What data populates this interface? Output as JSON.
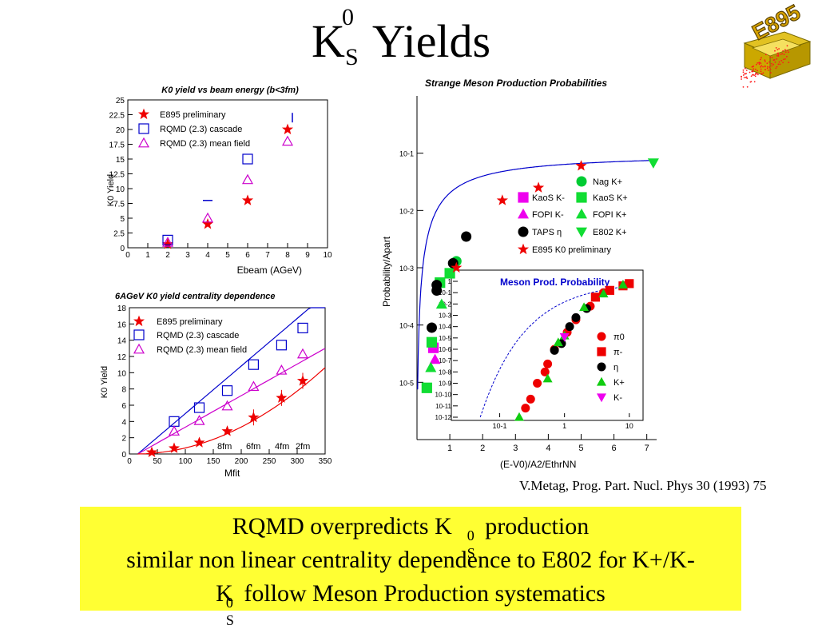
{
  "title": {
    "main": "K",
    "superscript": "0",
    "subscript": "S",
    "rest": "Yields"
  },
  "logo": {
    "text": "E895",
    "accent": "#cc9900"
  },
  "citation": "V.Metag, Prog. Part. Nucl. Phys 30 (1993) 75",
  "banner": {
    "color": "#ffff33",
    "line1_pre": "RQMD overpredicts K",
    "line1_post": " production",
    "line2": "similar non linear centrality dependence  to E802 for K+/K-",
    "line3_post": " follow Meson Production systematics",
    "k_sup": "0",
    "k_sub": "S"
  },
  "chart_data": [
    {
      "type": "scatter",
      "title": "K0 yield vs beam energy (b<3fm)",
      "xlabel": "Ebeam (AGeV)",
      "ylabel": "K0 Yield",
      "xlim": [
        0,
        10
      ],
      "ylim": [
        0,
        25
      ],
      "x_ticks": [
        "0",
        "1",
        "2",
        "3",
        "4",
        "5",
        "6",
        "7",
        "8",
        "9",
        "10"
      ],
      "y_ticks": [
        "0",
        "2.5",
        "5",
        "7.5",
        "10",
        "12.5",
        "15",
        "17.5",
        "20",
        "22.5",
        "25"
      ],
      "legend": [
        "E895 preliminary",
        "RQMD (2.3) cascade",
        "RQMD (2.3) mean field"
      ],
      "series": [
        {
          "name": "E895 preliminary",
          "marker": "star",
          "color": "#ee0000",
          "x": [
            2,
            4,
            6,
            8
          ],
          "y": [
            0.6,
            4.0,
            8.0,
            20.0
          ]
        },
        {
          "name": "RQMD (2.3) cascade",
          "marker": "square",
          "color": "#0000cc",
          "x": [
            2,
            4,
            6,
            8
          ],
          "y": [
            1.3,
            8.0,
            15.0,
            22.0
          ]
        },
        {
          "name": "RQMD (2.3) mean field",
          "marker": "triangle",
          "color": "#cc00cc",
          "x": [
            2,
            4,
            6,
            8
          ],
          "y": [
            0.9,
            5.0,
            11.5,
            18.0
          ]
        }
      ]
    },
    {
      "type": "scatter",
      "title": "6AGeV K0 yield centrality dependence",
      "xlabel": "Mfit",
      "ylabel": "K0 Yield",
      "xlim": [
        0,
        350
      ],
      "ylim": [
        0,
        18
      ],
      "x_ticks": [
        "0",
        "50",
        "100",
        "150",
        "200",
        "250",
        "300",
        "350"
      ],
      "y_ticks": [
        "0",
        "2",
        "4",
        "6",
        "8",
        "10",
        "12",
        "14",
        "16",
        "18"
      ],
      "legend": [
        "E895 preliminary",
        "RQMD (2.3) cascade",
        "RQMD (2.3) mean field"
      ],
      "annotations": [
        "8fm",
        "6fm",
        "4fm",
        "2fm"
      ],
      "series": [
        {
          "name": "E895 preliminary",
          "marker": "star",
          "color": "#ee0000",
          "x": [
            40,
            80,
            125,
            175,
            222,
            272,
            310
          ],
          "y": [
            0.2,
            0.7,
            1.4,
            2.8,
            4.5,
            6.9,
            9.0
          ]
        },
        {
          "name": "RQMD (2.3) cascade",
          "marker": "square",
          "color": "#0000cc",
          "x": [
            80,
            125,
            175,
            222,
            272,
            310
          ],
          "y": [
            4.0,
            5.7,
            7.8,
            11.0,
            13.4,
            15.5
          ]
        },
        {
          "name": "RQMD (2.3) mean field",
          "marker": "triangle",
          "color": "#cc00cc",
          "x": [
            80,
            125,
            175,
            222,
            272,
            310
          ],
          "y": [
            2.8,
            4.1,
            5.9,
            8.3,
            10.3,
            12.3
          ]
        }
      ]
    },
    {
      "type": "scatter",
      "title": "Strange Meson Production Probabilities",
      "xlabel": "",
      "ylabel": "Probability/Apart",
      "xlim": [
        0,
        7.3
      ],
      "ylim_log10": [
        -6,
        0
      ],
      "x_ticks": [
        "1",
        "2",
        "3",
        "4",
        "5",
        "6",
        "7"
      ],
      "y_ticks": [
        "10-5",
        "10-4",
        "10-3",
        "10-2",
        "10-1"
      ],
      "legend": [
        "Nag K+",
        "KaoS K-",
        "KaoS K+",
        "FOPI K-",
        "FOPI K+",
        "TAPS η",
        "E802 K+",
        "E895 K0 preliminary"
      ],
      "series": [
        {
          "name": "Nag K+",
          "marker": "circle",
          "color": "#00cc33",
          "x": [
            1.2
          ],
          "y": [
            0.0013
          ]
        },
        {
          "name": "KaoS K-",
          "marker": "square",
          "color": "#ee00ee",
          "x": [
            0.5
          ],
          "y": [
            4e-05
          ]
        },
        {
          "name": "KaoS K+",
          "marker": "square",
          "color": "#11dd33",
          "x": [
            0.3,
            0.45,
            0.7,
            1.0
          ],
          "y": [
            8e-06,
            5e-05,
            0.00055,
            0.0008
          ]
        },
        {
          "name": "FOPI K-",
          "marker": "triangle",
          "color": "#ee00ee",
          "x": [
            0.55
          ],
          "y": [
            2.5e-05
          ]
        },
        {
          "name": "FOPI K+",
          "marker": "triangle",
          "color": "#11dd33",
          "x": [
            0.42,
            0.75
          ],
          "y": [
            1.8e-05,
            0.00023
          ]
        },
        {
          "name": "TAPS η",
          "marker": "circle",
          "color": "#000000",
          "x": [
            0.45,
            0.6,
            0.6,
            1.1,
            1.5
          ],
          "y": [
            9e-05,
            0.0004,
            0.0005,
            0.0012,
            0.0035
          ]
        },
        {
          "name": "E802 K+",
          "marker": "triangle-down",
          "color": "#11dd33",
          "x": [
            7.2
          ],
          "y": [
            0.068
          ]
        },
        {
          "name": "E895 K0 preliminary",
          "marker": "star",
          "color": "#ee0000",
          "x": [
            1.2,
            2.6,
            3.7,
            5.0
          ],
          "y": [
            0.001,
            0.015,
            0.025,
            0.06
          ]
        }
      ]
    },
    {
      "type": "scatter",
      "title": "Meson Prod. Probability",
      "xlabel": "(E-V0)/A2/EthrNN",
      "x_ticks": [
        "10-1",
        "1",
        "10"
      ],
      "y_ticks": [
        "10-12",
        "10-11",
        "10-10",
        "10-9",
        "10-8",
        "10-7",
        "10-6",
        "10-5",
        "10-4",
        "10-3",
        "10-2",
        "10-1",
        "1"
      ],
      "legend": [
        "π0",
        "π-",
        "η",
        "K+",
        "K-"
      ],
      "series": [
        {
          "name": "π0",
          "marker": "circle",
          "color": "#ee0000",
          "x": [
            0.25,
            0.3,
            0.38,
            0.5,
            0.55,
            0.7,
            1.1,
            1.5,
            2.5,
            4
          ],
          "y": [
            -11.2,
            -10.4,
            -9.0,
            -8.0,
            -7.3,
            -6.0,
            -4.5,
            -3.4,
            -2.2,
            -1.0
          ]
        },
        {
          "name": "π-",
          "marker": "square",
          "color": "#ee0000",
          "x": [
            3,
            5,
            8,
            10
          ],
          "y": [
            -1.4,
            -0.8,
            -0.4,
            -0.2
          ]
        },
        {
          "name": "η",
          "marker": "circle",
          "color": "#000000",
          "x": [
            0.7,
            0.9,
            1.2,
            1.5,
            2.2
          ],
          "y": [
            -6.1,
            -5.5,
            -4.0,
            -3.2,
            -2.4
          ]
        },
        {
          "name": "K+",
          "marker": "triangle",
          "color": "#11cc11",
          "x": [
            0.2,
            0.55,
            0.8,
            1.0,
            2.0,
            4.0,
            8.0
          ],
          "y": [
            -12,
            -8.6,
            -5.4,
            -4.8,
            -2.3,
            -1.1,
            -0.3
          ]
        },
        {
          "name": "K-",
          "marker": "triangle-down",
          "color": "#ee00ee",
          "x": [
            1.0
          ],
          "y": [
            -4.9
          ]
        }
      ]
    }
  ]
}
